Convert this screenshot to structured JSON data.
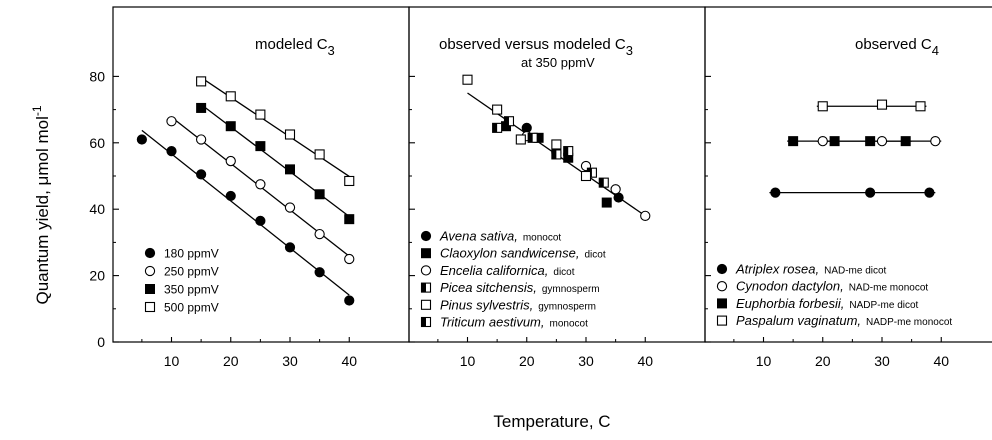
{
  "figure": {
    "ylabel_main": "Quantum yield, μmol mol",
    "ylabel_sup": "-1",
    "xlabel": "Temperature, C"
  },
  "chart_data": [
    {
      "type": "scatter",
      "title_main": "modeled  C",
      "title_sub": "3",
      "ylim": [
        0,
        100
      ],
      "xlim": [
        0,
        45
      ],
      "xticks": [
        10,
        20,
        30,
        40
      ],
      "yticks": [
        0,
        20,
        40,
        60,
        80
      ],
      "legend_placement": "lower-left",
      "series": [
        {
          "name": "180 ppmV",
          "marker": "filled-circle",
          "x": [
            5,
            10,
            15,
            20,
            25,
            30,
            35,
            40
          ],
          "y": [
            61,
            57.5,
            50.5,
            44,
            36.5,
            28.5,
            21,
            12.5
          ],
          "fit": true
        },
        {
          "name": "250 ppmV",
          "marker": "open-circle",
          "x": [
            10,
            15,
            20,
            25,
            30,
            35,
            40
          ],
          "y": [
            66.5,
            61,
            54.5,
            47.5,
            40.5,
            32.5,
            25
          ],
          "fit": true
        },
        {
          "name": "350 ppmV",
          "marker": "filled-square",
          "x": [
            15,
            20,
            25,
            30,
            35,
            40
          ],
          "y": [
            70.5,
            65,
            59,
            52,
            44.5,
            37
          ],
          "fit": true
        },
        {
          "name": "500 ppmV",
          "marker": "open-square",
          "x": [
            15,
            20,
            25,
            30,
            35,
            40
          ],
          "y": [
            78.5,
            74,
            68.5,
            62.5,
            56.5,
            48.5
          ],
          "fit": true
        }
      ]
    },
    {
      "type": "scatter",
      "title_main": "observed versus modeled  C",
      "title_sub": "3",
      "subtitle": "at 350 ppmV",
      "ylim": [
        0,
        100
      ],
      "xlim": [
        0,
        45
      ],
      "xticks": [
        10,
        20,
        30,
        40
      ],
      "legend_placement": "lower-left",
      "fit_line": {
        "x": [
          10,
          40
        ],
        "y": [
          75,
          38
        ]
      },
      "series": [
        {
          "name": "Avena sativa,",
          "note": "monocot",
          "marker": "filled-circle",
          "x": [
            20,
            25,
            35.5
          ],
          "y": [
            64.5,
            57,
            43.5
          ]
        },
        {
          "name": "Claoxylon sandwicense,",
          "note": "dicot",
          "marker": "filled-square",
          "x": [
            16.5,
            22,
            27,
            33.5
          ],
          "y": [
            65,
            61.5,
            55.5,
            42
          ]
        },
        {
          "name": "Encelia californica,",
          "note": "dicot",
          "marker": "open-circle",
          "x": [
            20,
            30,
            35,
            40
          ],
          "y": [
            62,
            53,
            46,
            38
          ]
        },
        {
          "name": "Picea sitchensis,",
          "note": "gymnosperm",
          "marker": "half-square",
          "x": [
            15,
            25,
            31
          ],
          "y": [
            64.5,
            56.5,
            51
          ]
        },
        {
          "name": "Pinus sylvestris,",
          "note": "gymnosperm",
          "marker": "open-square",
          "x": [
            10,
            15,
            19,
            25,
            30
          ],
          "y": [
            79,
            70,
            61,
            59.5,
            50
          ]
        },
        {
          "name": "Triticum aestivum,",
          "note": "monocot",
          "marker": "half-square",
          "x": [
            17,
            21,
            27,
            33
          ],
          "y": [
            66.5,
            61.5,
            57.5,
            48
          ]
        }
      ]
    },
    {
      "type": "scatter",
      "title_main": "observed    C",
      "title_sub": "4",
      "ylim": [
        0,
        100
      ],
      "xlim": [
        0,
        45
      ],
      "xticks": [
        10,
        20,
        30,
        40
      ],
      "legend_placement": "lower-left",
      "series": [
        {
          "name": "Atriplex rosea,",
          "note": "NAD-me dicot",
          "marker": "filled-circle",
          "x": [
            12,
            28,
            38
          ],
          "y": [
            45,
            45,
            45
          ],
          "line_x": [
            11,
            39
          ]
        },
        {
          "name": "Cynodon dactylon,",
          "note": "NAD-me monocot",
          "marker": "open-circle",
          "x": [
            20,
            30,
            39
          ],
          "y": [
            60.5,
            60.5,
            60.5
          ],
          "line_x": [
            19,
            40
          ]
        },
        {
          "name": "Euphorbia forbesii,",
          "note": "NADP-me dicot",
          "marker": "filled-square",
          "x": [
            15,
            22,
            28,
            34
          ],
          "y": [
            60.5,
            60.5,
            60.5,
            60.5
          ],
          "line_x": [
            14,
            35
          ]
        },
        {
          "name": "Paspalum vaginatum,",
          "note": "NADP-me monocot",
          "marker": "open-square",
          "x": [
            20,
            30,
            36.5
          ],
          "y": [
            71,
            71.5,
            71
          ],
          "line_x": [
            19,
            37.5
          ]
        }
      ]
    }
  ]
}
